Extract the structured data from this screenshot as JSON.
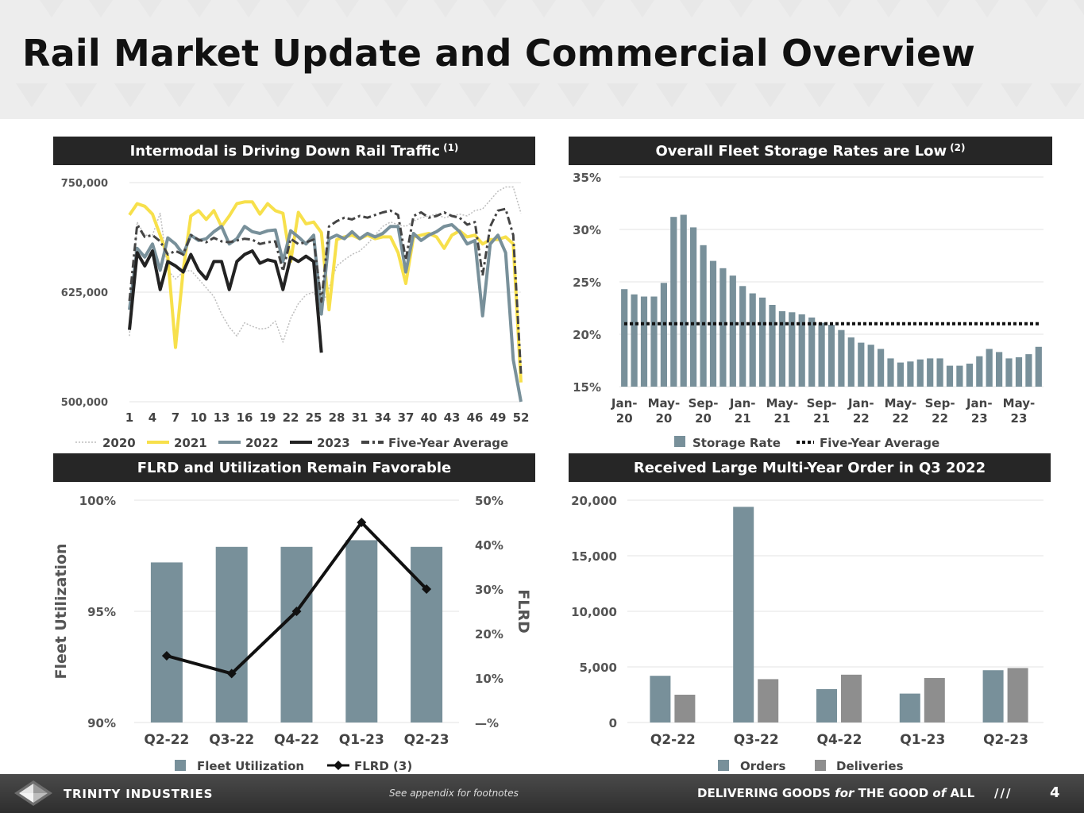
{
  "title": "Rail Market Update and Commercial Overview",
  "panels": {
    "tl_title": "Intermodal is Driving Down Rail Traffic",
    "tl_sup": "(1)",
    "tr_title": "Overall Fleet Storage Rates are Low",
    "tr_sup": "(2)",
    "bl_title": "FLRD and Utilization Remain Favorable",
    "br_title": "Received Large Multi-Year Order in Q3 2022"
  },
  "colors": {
    "c2020": "#bdbdbd",
    "c2021": "#f7e04b",
    "c2022": "#78909a",
    "c2023": "#222222",
    "avg": "#444444",
    "bar": "#78909a",
    "deliveries": "#8e8e8e",
    "grid": "#e3e3e3"
  },
  "footer": {
    "brand": "TRINITY INDUSTRIES",
    "footnote": "See appendix for footnotes",
    "tagline_1": "DELIVERING GOODS ",
    "tagline_for": "for",
    "tagline_2": " THE GOOD ",
    "tagline_of": "of",
    "tagline_3": " ALL",
    "slashes": "///",
    "page": "4"
  },
  "chart_data": [
    {
      "id": "rail-traffic",
      "type": "line",
      "title": "Intermodal is Driving Down Rail Traffic (1)",
      "ylim": [
        500000,
        750000
      ],
      "ytick_labels": [
        "500,000",
        "625,000",
        "750,000"
      ],
      "yticks": [
        500000,
        625000,
        750000
      ],
      "x_start": 1,
      "x_end": 52,
      "xtick_labels": [
        "1",
        "4",
        "7",
        "10",
        "13",
        "16",
        "19",
        "22",
        "25",
        "28",
        "31",
        "34",
        "37",
        "40",
        "43",
        "46",
        "49",
        "52"
      ],
      "series": [
        {
          "name": "2020",
          "style": "dotted",
          "values": [
            575000,
            705000,
            690000,
            690000,
            715000,
            650000,
            640000,
            648000,
            650000,
            640000,
            630000,
            620000,
            600000,
            585000,
            575000,
            590000,
            586000,
            583000,
            584000,
            592000,
            568000,
            595000,
            612000,
            622000,
            625000,
            608000,
            630000,
            655000,
            662000,
            668000,
            672000,
            680000,
            690000,
            700000,
            705000,
            702000,
            700000,
            706000,
            710000,
            712000,
            714000,
            710000,
            712000,
            714000,
            712000,
            718000,
            720000,
            730000,
            740000,
            745000,
            745000,
            715000
          ]
        },
        {
          "name": "2021",
          "style": "solid",
          "values": [
            713000,
            726000,
            723000,
            714000,
            690000,
            665000,
            562000,
            650000,
            712000,
            718000,
            708000,
            718000,
            700000,
            712000,
            726000,
            728000,
            728000,
            714000,
            726000,
            718000,
            715000,
            660000,
            716000,
            703000,
            705000,
            693000,
            605000,
            685000,
            688000,
            690000,
            686000,
            690000,
            686000,
            688000,
            688000,
            670000,
            635000,
            688000,
            690000,
            692000,
            688000,
            675000,
            690000,
            695000,
            688000,
            690000,
            680000,
            685000,
            685000,
            688000,
            680000,
            522000
          ]
        },
        {
          "name": "2022",
          "style": "solid",
          "values": [
            605000,
            675000,
            665000,
            680000,
            650000,
            687000,
            680000,
            668000,
            690000,
            684000,
            686000,
            694000,
            700000,
            680000,
            686000,
            700000,
            694000,
            692000,
            695000,
            696000,
            660000,
            695000,
            688000,
            680000,
            690000,
            600000,
            686000,
            690000,
            686000,
            694000,
            686000,
            692000,
            688000,
            692000,
            700000,
            700000,
            648000,
            692000,
            684000,
            690000,
            694000,
            700000,
            702000,
            694000,
            680000,
            684000,
            598000,
            680000,
            690000,
            670000,
            548000,
            500000
          ]
        },
        {
          "name": "2023",
          "style": "solid",
          "values": [
            582000,
            670000,
            655000,
            672000,
            628000,
            660000,
            655000,
            648000,
            668000,
            650000,
            640000,
            660000,
            660000,
            628000,
            660000,
            668000,
            672000,
            658000,
            662000,
            660000,
            628000,
            665000,
            660000,
            666000,
            660000,
            556000
          ]
        },
        {
          "name": "Five-Year Average",
          "style": "dashdot",
          "values": [
            615000,
            702000,
            688000,
            690000,
            683000,
            668000,
            672000,
            668000,
            690000,
            685000,
            682000,
            687000,
            683000,
            682000,
            684000,
            686000,
            685000,
            680000,
            682000,
            683000,
            649000,
            686000,
            680000,
            682000,
            685000,
            614000,
            700000,
            706000,
            710000,
            708000,
            712000,
            710000,
            713000,
            716000,
            718000,
            713000,
            662000,
            712000,
            716000,
            710000,
            712000,
            716000,
            712000,
            710000,
            702000,
            705000,
            644000,
            700000,
            718000,
            720000,
            690000,
            532000
          ]
        }
      ]
    },
    {
      "id": "storage-rates",
      "type": "bar",
      "title": "Overall Fleet Storage Rates are Low (2)",
      "ylim": [
        15,
        35
      ],
      "ytick_labels": [
        "15%",
        "20%",
        "25%",
        "30%",
        "35%"
      ],
      "yticks": [
        15,
        20,
        25,
        30,
        35
      ],
      "xtick_labels": [
        [
          "Jan-",
          "20"
        ],
        [
          "May-",
          "20"
        ],
        [
          "Sep-",
          "20"
        ],
        [
          "Jan-",
          "21"
        ],
        [
          "May-",
          "21"
        ],
        [
          "Sep-",
          "21"
        ],
        [
          "Jan-",
          "22"
        ],
        [
          "May-",
          "22"
        ],
        [
          "Sep-",
          "22"
        ],
        [
          "Jan-",
          "23"
        ],
        [
          "May-",
          "23"
        ]
      ],
      "series": [
        {
          "name": "Storage Rate",
          "values": [
            24.3,
            23.8,
            23.6,
            23.6,
            24.9,
            31.2,
            31.4,
            30.2,
            28.5,
            27.0,
            26.3,
            25.6,
            24.6,
            23.9,
            23.5,
            22.8,
            22.2,
            22.1,
            21.9,
            21.6,
            21.1,
            20.9,
            20.4,
            19.7,
            19.2,
            19.0,
            18.6,
            17.7,
            17.3,
            17.4,
            17.6,
            17.7,
            17.7,
            17.0,
            17.0,
            17.2,
            17.9,
            18.6,
            18.3,
            17.7,
            17.8,
            18.1,
            18.8
          ]
        },
        {
          "name": "Five-Year Average",
          "values": [
            21.0
          ]
        }
      ]
    },
    {
      "id": "flrd-utilization",
      "type": "bar",
      "title": "FLRD and Utilization Remain Favorable",
      "categories": [
        "Q2-22",
        "Q3-22",
        "Q4-22",
        "Q1-23",
        "Q2-23"
      ],
      "ylabel": "Fleet Utilization",
      "y2label": "FLRD",
      "ylim": [
        90,
        100
      ],
      "ytick_labels": [
        "90%",
        "95%",
        "100%"
      ],
      "yticks": [
        90,
        95,
        100
      ],
      "y2lim": [
        0,
        50
      ],
      "y2tick_labels": [
        "—%",
        "10%",
        "20%",
        "30%",
        "40%",
        "50%"
      ],
      "y2ticks": [
        0,
        10,
        20,
        30,
        40,
        50
      ],
      "series": [
        {
          "name": "Fleet Utilization",
          "type": "bar",
          "values": [
            97.2,
            97.9,
            97.9,
            98.2,
            97.9
          ]
        },
        {
          "name": "FLRD (3)",
          "type": "line",
          "values": [
            15,
            11,
            25,
            45,
            30
          ]
        }
      ]
    },
    {
      "id": "orders-deliveries",
      "type": "bar",
      "title": "Received Large Multi-Year Order in Q3 2022",
      "categories": [
        "Q2-22",
        "Q3-22",
        "Q4-22",
        "Q1-23",
        "Q2-23"
      ],
      "ylim": [
        0,
        20000
      ],
      "ytick_labels": [
        "0",
        "5,000",
        "10,000",
        "15,000",
        "20,000"
      ],
      "yticks": [
        0,
        5000,
        10000,
        15000,
        20000
      ],
      "series": [
        {
          "name": "Orders",
          "values": [
            4200,
            19400,
            3000,
            2600,
            4700
          ]
        },
        {
          "name": "Deliveries",
          "values": [
            2500,
            3900,
            4300,
            4000,
            4900
          ]
        }
      ]
    }
  ]
}
